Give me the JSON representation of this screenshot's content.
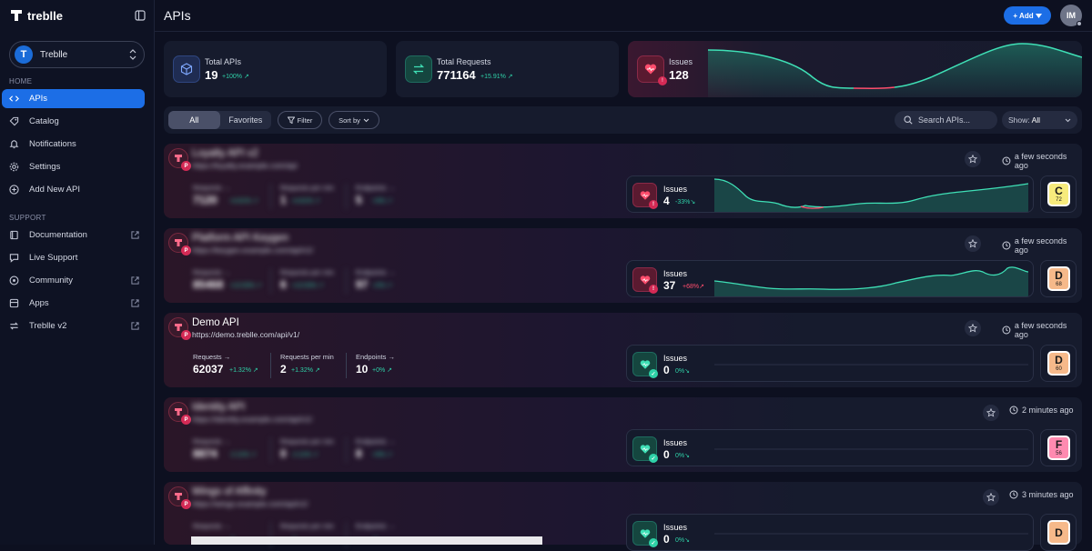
{
  "brand": {
    "name": "treblle"
  },
  "workspace": {
    "name": "Treblle"
  },
  "sidebar": {
    "home_section": "HOME",
    "support_section": "SUPPORT",
    "items": [
      {
        "label": "APIs"
      },
      {
        "label": "Catalog"
      },
      {
        "label": "Notifications"
      },
      {
        "label": "Settings"
      },
      {
        "label": "Add New API"
      }
    ],
    "support_items": [
      {
        "label": "Documentation"
      },
      {
        "label": "Live Support"
      },
      {
        "label": "Community"
      },
      {
        "label": "Apps"
      },
      {
        "label": "Treblle v2"
      }
    ]
  },
  "header": {
    "title": "APIs",
    "add_label": "Add",
    "avatar_initials": "IM"
  },
  "stats": {
    "total_apis": {
      "label": "Total APIs",
      "value": "19",
      "delta": "+100%"
    },
    "total_requests": {
      "label": "Total Requests",
      "value": "771164",
      "delta": "+15.91%"
    },
    "issues": {
      "label": "Issues",
      "value": "128"
    }
  },
  "filters": {
    "all_label": "All",
    "favorites_label": "Favorites",
    "filter_label": "Filter",
    "sort_label": "Sort by",
    "search_placeholder": "Search APIs...",
    "show_label": "Show:",
    "show_value": "All"
  },
  "metric_labels": {
    "requests": "Requests →",
    "rpm": "Requests per min",
    "endpoints": "Endpoints →"
  },
  "cards": [
    {
      "name": "Loyalty API v2",
      "url": "https://loyalty.example.com/api",
      "time": "a few seconds ago",
      "requests": "7120",
      "requests_delta": "+4.61%",
      "rpm": "1",
      "rpm_delta": "+4.61%",
      "endpoints": "5",
      "endpoints_delta": "+0%",
      "issues_label": "Issues",
      "issues": "4",
      "issues_delta": "-33%",
      "grade": "C",
      "score": "72",
      "blurred": true
    },
    {
      "name": "Platform API Keygen",
      "url": "https://keygen.example.com/api/v1/",
      "time": "a few seconds ago",
      "requests": "85468",
      "requests_delta": "+13.53%",
      "rpm": "6",
      "rpm_delta": "+13.53%",
      "endpoints": "97",
      "endpoints_delta": "+2%",
      "issues_label": "Issues",
      "issues": "37",
      "issues_delta": "+68%",
      "grade": "D",
      "score": "68",
      "blurred": true
    },
    {
      "name": "Demo API",
      "url": "https://demo.treblle.com/api/v1/",
      "time": "a few seconds ago",
      "requests": "62037",
      "requests_delta": "+1.32%",
      "rpm": "2",
      "rpm_delta": "+1.32%",
      "endpoints": "10",
      "endpoints_delta": "+0%",
      "issues_label": "Issues",
      "issues": "0",
      "issues_delta": "0%",
      "grade": "D",
      "score": "60",
      "blurred": false
    },
    {
      "name": "Identity API",
      "url": "https://identity.example.com/api/v1/",
      "time": "2 minutes ago",
      "requests": "8874",
      "requests_delta": "-2.11%",
      "rpm": "0",
      "rpm_delta": "-2.11%",
      "endpoints": "8",
      "endpoints_delta": "+0%",
      "issues_label": "Issues",
      "issues": "0",
      "issues_delta": "0%",
      "grade": "F",
      "score": "56",
      "blurred": true
    },
    {
      "name": "Wings of Affinity",
      "url": "https://wings.example.com/api/v1/",
      "time": "3 minutes ago",
      "requests": "",
      "requests_delta": "",
      "rpm": "",
      "rpm_delta": "",
      "endpoints": "",
      "endpoints_delta": "",
      "issues_label": "Issues",
      "issues": "0",
      "issues_delta": "0%",
      "grade": "D",
      "score": "",
      "blurred": true
    }
  ],
  "colors": {
    "accent": "#1c6ee6",
    "teal": "#2fd1a8",
    "red": "#ff4d6d",
    "grade_C": "#f7eb7c",
    "grade_D": "#f6b98a",
    "grade_F": "#ff8ab0"
  }
}
